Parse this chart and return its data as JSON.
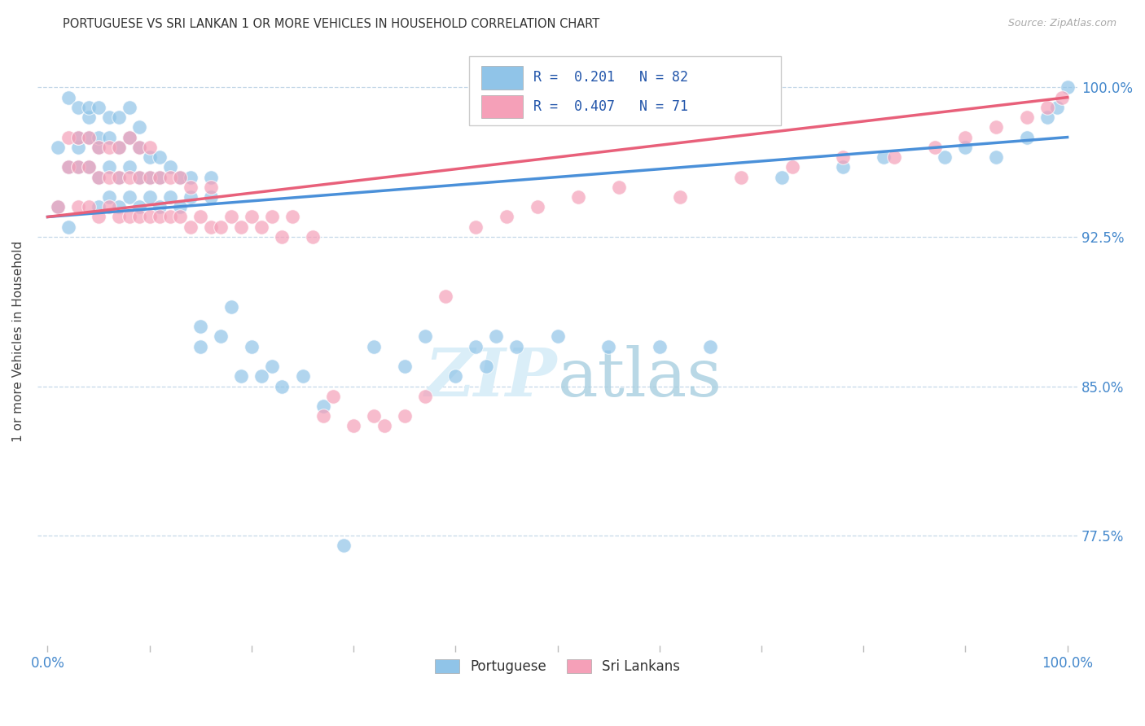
{
  "title": "PORTUGUESE VS SRI LANKAN 1 OR MORE VEHICLES IN HOUSEHOLD CORRELATION CHART",
  "source": "Source: ZipAtlas.com",
  "ylabel": "1 or more Vehicles in Household",
  "ymin": 0.72,
  "ymax": 1.025,
  "xmin": -0.01,
  "xmax": 1.01,
  "r_blue": 0.201,
  "n_blue": 82,
  "r_pink": 0.407,
  "n_pink": 71,
  "blue_color": "#90c4e8",
  "pink_color": "#f5a0b8",
  "blue_line_color": "#4a90d9",
  "pink_line_color": "#e8607a",
  "watermark_color": "#daeef8",
  "blue_scatter_x": [
    0.01,
    0.01,
    0.02,
    0.02,
    0.02,
    0.03,
    0.03,
    0.03,
    0.03,
    0.04,
    0.04,
    0.04,
    0.04,
    0.05,
    0.05,
    0.05,
    0.05,
    0.05,
    0.06,
    0.06,
    0.06,
    0.06,
    0.07,
    0.07,
    0.07,
    0.07,
    0.08,
    0.08,
    0.08,
    0.08,
    0.09,
    0.09,
    0.09,
    0.09,
    0.1,
    0.1,
    0.1,
    0.11,
    0.11,
    0.11,
    0.12,
    0.12,
    0.13,
    0.13,
    0.14,
    0.14,
    0.15,
    0.15,
    0.16,
    0.16,
    0.17,
    0.18,
    0.19,
    0.2,
    0.21,
    0.22,
    0.23,
    0.25,
    0.27,
    0.29,
    0.32,
    0.35,
    0.37,
    0.4,
    0.42,
    0.43,
    0.44,
    0.46,
    0.5,
    0.55,
    0.6,
    0.65,
    0.72,
    0.78,
    0.82,
    0.88,
    0.9,
    0.93,
    0.96,
    0.98,
    0.99,
    1.0
  ],
  "blue_scatter_y": [
    0.94,
    0.97,
    0.96,
    0.995,
    0.93,
    0.96,
    0.97,
    0.975,
    0.99,
    0.96,
    0.975,
    0.985,
    0.99,
    0.94,
    0.955,
    0.97,
    0.975,
    0.99,
    0.945,
    0.96,
    0.975,
    0.985,
    0.94,
    0.955,
    0.97,
    0.985,
    0.945,
    0.96,
    0.975,
    0.99,
    0.94,
    0.955,
    0.97,
    0.98,
    0.945,
    0.955,
    0.965,
    0.94,
    0.955,
    0.965,
    0.945,
    0.96,
    0.94,
    0.955,
    0.945,
    0.955,
    0.87,
    0.88,
    0.945,
    0.955,
    0.875,
    0.89,
    0.855,
    0.87,
    0.855,
    0.86,
    0.85,
    0.855,
    0.84,
    0.77,
    0.87,
    0.86,
    0.875,
    0.855,
    0.87,
    0.86,
    0.875,
    0.87,
    0.875,
    0.87,
    0.87,
    0.87,
    0.955,
    0.96,
    0.965,
    0.965,
    0.97,
    0.965,
    0.975,
    0.985,
    0.99,
    1.0
  ],
  "pink_scatter_x": [
    0.01,
    0.02,
    0.02,
    0.03,
    0.03,
    0.03,
    0.04,
    0.04,
    0.04,
    0.05,
    0.05,
    0.05,
    0.06,
    0.06,
    0.06,
    0.07,
    0.07,
    0.07,
    0.08,
    0.08,
    0.08,
    0.09,
    0.09,
    0.09,
    0.1,
    0.1,
    0.1,
    0.11,
    0.11,
    0.12,
    0.12,
    0.13,
    0.13,
    0.14,
    0.14,
    0.15,
    0.16,
    0.16,
    0.17,
    0.18,
    0.19,
    0.2,
    0.21,
    0.22,
    0.23,
    0.24,
    0.26,
    0.27,
    0.28,
    0.3,
    0.32,
    0.33,
    0.35,
    0.37,
    0.39,
    0.42,
    0.45,
    0.48,
    0.52,
    0.56,
    0.62,
    0.68,
    0.73,
    0.78,
    0.83,
    0.87,
    0.9,
    0.93,
    0.96,
    0.98,
    0.995
  ],
  "pink_scatter_y": [
    0.94,
    0.96,
    0.975,
    0.94,
    0.96,
    0.975,
    0.94,
    0.96,
    0.975,
    0.935,
    0.955,
    0.97,
    0.94,
    0.955,
    0.97,
    0.935,
    0.955,
    0.97,
    0.935,
    0.955,
    0.975,
    0.935,
    0.955,
    0.97,
    0.935,
    0.955,
    0.97,
    0.935,
    0.955,
    0.935,
    0.955,
    0.935,
    0.955,
    0.93,
    0.95,
    0.935,
    0.93,
    0.95,
    0.93,
    0.935,
    0.93,
    0.935,
    0.93,
    0.935,
    0.925,
    0.935,
    0.925,
    0.835,
    0.845,
    0.83,
    0.835,
    0.83,
    0.835,
    0.845,
    0.895,
    0.93,
    0.935,
    0.94,
    0.945,
    0.95,
    0.945,
    0.955,
    0.96,
    0.965,
    0.965,
    0.97,
    0.975,
    0.98,
    0.985,
    0.99,
    0.995
  ]
}
